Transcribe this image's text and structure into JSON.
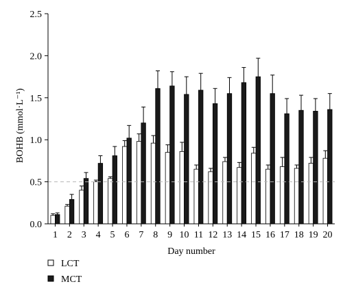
{
  "chart_data": {
    "type": "bar",
    "title": "",
    "xlabel": "Day number",
    "ylabel": "BOHB (mmol·L⁻¹)",
    "ylim": [
      0,
      2.5
    ],
    "yticks": [
      "0.0",
      "0.5",
      "1.0",
      "1.5",
      "2.0",
      "2.5"
    ],
    "categories": [
      "1",
      "2",
      "3",
      "4",
      "5",
      "6",
      "7",
      "8",
      "9",
      "10",
      "11",
      "12",
      "13",
      "14",
      "15",
      "16",
      "17",
      "18",
      "19",
      "20"
    ],
    "reference_line": 0.5,
    "grid": false,
    "legend_position": "bottom-left",
    "series": [
      {
        "name": "LCT",
        "fill": "#ffffff",
        "values": [
          0.1,
          0.21,
          0.4,
          0.5,
          0.54,
          0.92,
          0.98,
          0.96,
          0.85,
          0.86,
          0.65,
          0.62,
          0.74,
          0.67,
          0.84,
          0.65,
          0.68,
          0.66,
          0.72,
          0.78
        ],
        "errors": [
          0.02,
          0.02,
          0.05,
          0.02,
          0.02,
          0.07,
          0.09,
          0.09,
          0.09,
          0.11,
          0.05,
          0.04,
          0.05,
          0.06,
          0.07,
          0.05,
          0.11,
          0.04,
          0.07,
          0.09
        ]
      },
      {
        "name": "MCT",
        "fill": "#1a1a1a",
        "values": [
          0.11,
          0.29,
          0.54,
          0.72,
          0.81,
          1.02,
          1.2,
          1.61,
          1.64,
          1.54,
          1.59,
          1.43,
          1.55,
          1.68,
          1.75,
          1.55,
          1.31,
          1.35,
          1.34,
          1.36
        ],
        "errors": [
          0.02,
          0.06,
          0.07,
          0.09,
          0.11,
          0.15,
          0.19,
          0.21,
          0.17,
          0.21,
          0.2,
          0.18,
          0.19,
          0.18,
          0.22,
          0.22,
          0.18,
          0.18,
          0.15,
          0.19
        ]
      }
    ]
  }
}
